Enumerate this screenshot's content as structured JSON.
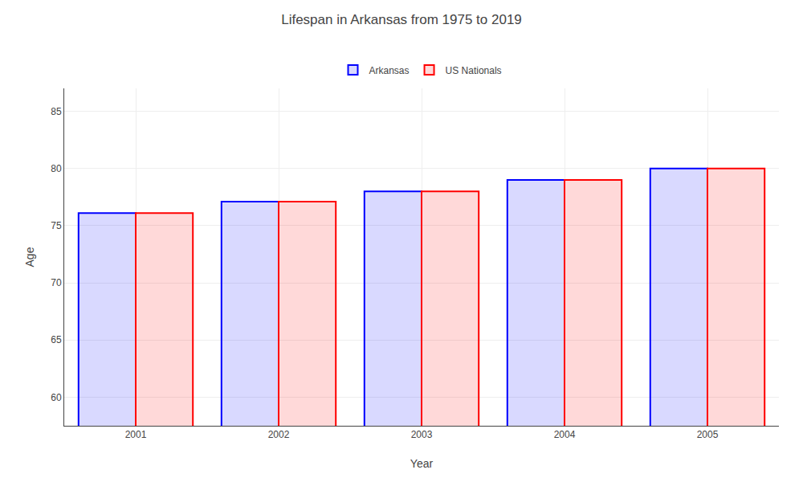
{
  "chart_data": {
    "type": "bar",
    "title": "Lifespan in Arkansas from 1975 to 2019",
    "x_label": "Year",
    "y_label": "Age",
    "categories": [
      "2001",
      "2002",
      "2003",
      "2004",
      "2005"
    ],
    "series": [
      {
        "name": "Arkansas",
        "color": "#0000ff",
        "values": [
          76.1,
          77.1,
          78.0,
          79.0,
          80.0
        ]
      },
      {
        "name": "US Nationals",
        "color": "#ff0000",
        "values": [
          76.1,
          77.1,
          78.0,
          79.0,
          80.0
        ]
      }
    ],
    "ylim": [
      57.5,
      87
    ],
    "yticks": [
      60,
      65,
      70,
      75,
      80,
      85
    ],
    "grid": true,
    "legend": "upper center"
  }
}
